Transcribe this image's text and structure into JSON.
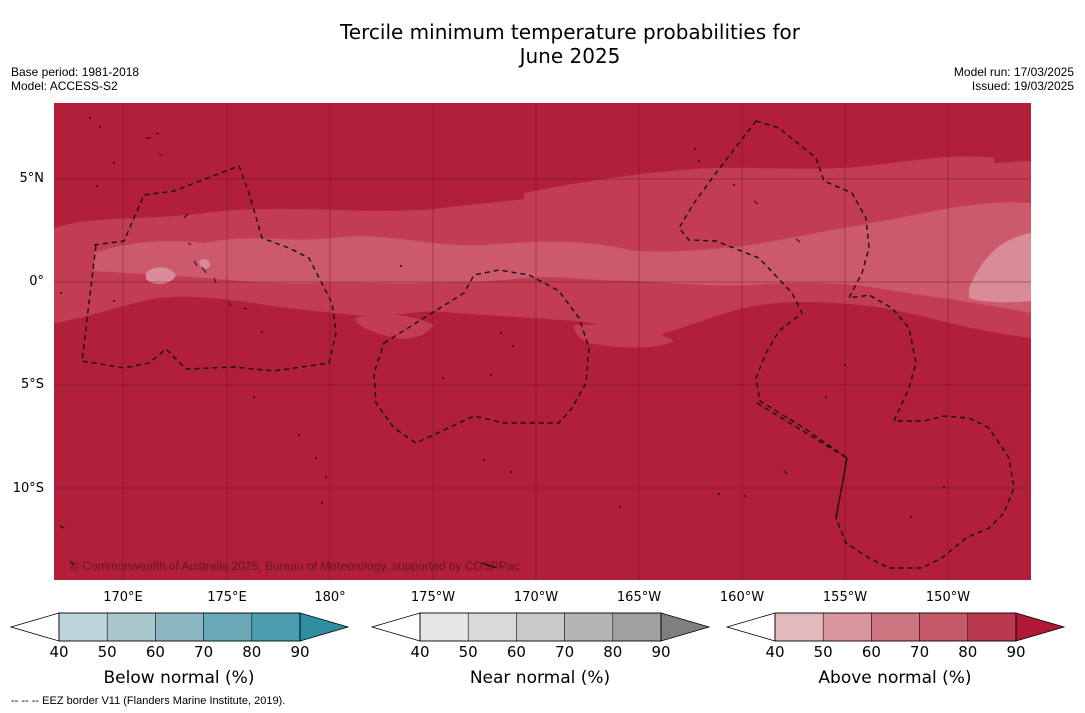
{
  "title_line1": "Tercile minimum temperature probabilities for",
  "title_line2": "June 2025",
  "base_period": "Base period: 1981-2018",
  "model": "Model: ACCESS-S2",
  "model_run": "Model run: 17/03/2025",
  "issued": "Issued: 19/03/2025",
  "map": {
    "lat_labels": [
      "5°N",
      "0°",
      "5°S",
      "10°S"
    ],
    "lon_labels": [
      "170°E",
      "175°E",
      "180°",
      "175°W",
      "170°W",
      "165°W",
      "160°W",
      "155°W",
      "150°W"
    ],
    "copyright": "© Commonwealth of Australia 2025, Bureau of Meteorology, supported by COSPPac",
    "colors": {
      "base": "#b21f3a",
      "mid": "#c23c54",
      "light1": "#cc5a6c",
      "light2": "#d98c98"
    }
  },
  "colorbars": [
    {
      "title": "Below normal (%)",
      "ticks": [
        "40",
        "50",
        "60",
        "70",
        "80",
        "90"
      ],
      "colors": [
        "#bed5dc",
        "#a8c7cd",
        "#8ab7c1",
        "#6ba9b7",
        "#4b9eaf",
        "#2e8fa3"
      ]
    },
    {
      "title": "Near normal (%)",
      "ticks": [
        "40",
        "50",
        "60",
        "70",
        "80",
        "90"
      ],
      "colors": [
        "#e6e6e6",
        "#d9d9d9",
        "#c9c9c9",
        "#b5b5b5",
        "#a0a0a0",
        "#7f7f7f"
      ]
    },
    {
      "title": "Above normal (%)",
      "ticks": [
        "40",
        "50",
        "60",
        "70",
        "80",
        "90"
      ],
      "colors": [
        "#e4b9be",
        "#d8969e",
        "#cd7580",
        "#c45a69",
        "#b93a4f",
        "#b01a36"
      ]
    }
  ],
  "footnote": "--  --  -- EEZ border V11 (Flanders Marine Institute, 2019)."
}
